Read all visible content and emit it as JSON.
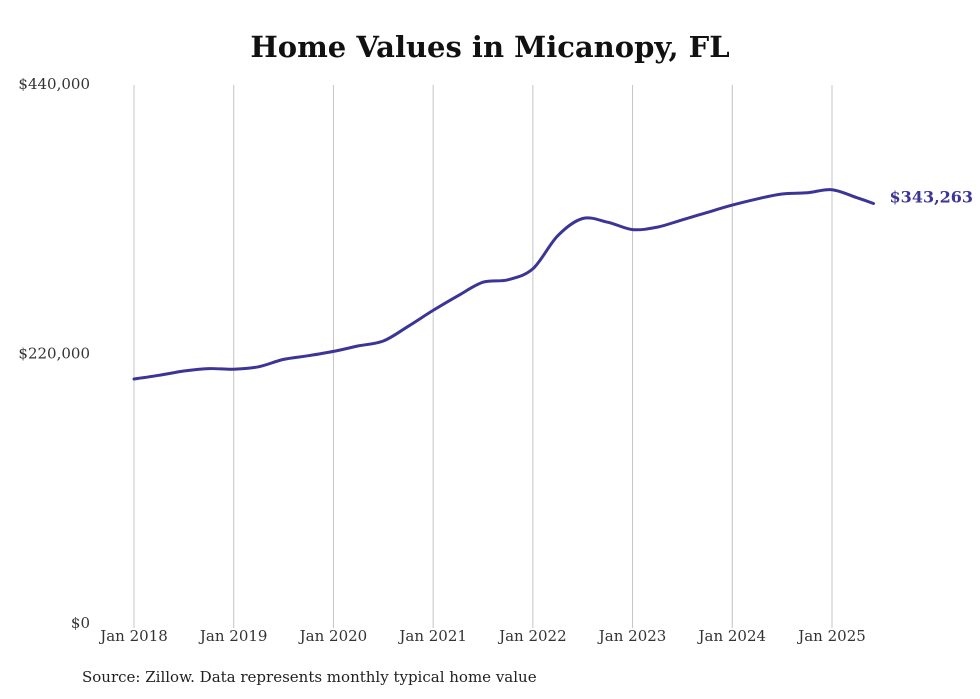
{
  "chart_data": {
    "type": "line",
    "title": "Home Values in Micanopy, FL",
    "source": "Source: Zillow. Data represents monthly typical home value",
    "ylim": [
      0,
      440000
    ],
    "y_ticks": [
      {
        "value": 440000,
        "label": "$440,000"
      },
      {
        "value": 220000,
        "label": "$220,000"
      },
      {
        "value": 0,
        "label": "$0"
      }
    ],
    "x_ticks": [
      {
        "value": "2018-01",
        "label": "Jan 2018"
      },
      {
        "value": "2019-01",
        "label": "Jan 2019"
      },
      {
        "value": "2020-01",
        "label": "Jan 2020"
      },
      {
        "value": "2021-01",
        "label": "Jan 2021"
      },
      {
        "value": "2022-01",
        "label": "Jan 2022"
      },
      {
        "value": "2023-01",
        "label": "Jan 2023"
      },
      {
        "value": "2024-01",
        "label": "Jan 2024"
      },
      {
        "value": "2025-01",
        "label": "Jan 2025"
      }
    ],
    "grid": "vertical",
    "color": "#3b3596",
    "end_label": "$343,263",
    "series": [
      {
        "points": [
          [
            "2018-01",
            200000
          ],
          [
            "2018-04",
            203000
          ],
          [
            "2018-07",
            206500
          ],
          [
            "2018-10",
            208500
          ],
          [
            "2019-01",
            208000
          ],
          [
            "2019-04",
            210000
          ],
          [
            "2019-07",
            216000
          ],
          [
            "2019-10",
            219000
          ],
          [
            "2020-01",
            222500
          ],
          [
            "2020-04",
            227000
          ],
          [
            "2020-07",
            231000
          ],
          [
            "2020-10",
            243000
          ],
          [
            "2021-01",
            256000
          ],
          [
            "2021-04",
            268000
          ],
          [
            "2021-07",
            279000
          ],
          [
            "2021-10",
            281000
          ],
          [
            "2022-01",
            290000
          ],
          [
            "2022-04",
            317000
          ],
          [
            "2022-07",
            331000
          ],
          [
            "2022-10",
            328000
          ],
          [
            "2023-01",
            322000
          ],
          [
            "2023-04",
            324000
          ],
          [
            "2023-07",
            330000
          ],
          [
            "2023-10",
            336000
          ],
          [
            "2024-01",
            342000
          ],
          [
            "2024-04",
            347000
          ],
          [
            "2024-07",
            351000
          ],
          [
            "2024-10",
            352000
          ],
          [
            "2025-01",
            354500
          ],
          [
            "2025-04",
            348000
          ],
          [
            "2025-06",
            343263
          ]
        ]
      }
    ]
  }
}
